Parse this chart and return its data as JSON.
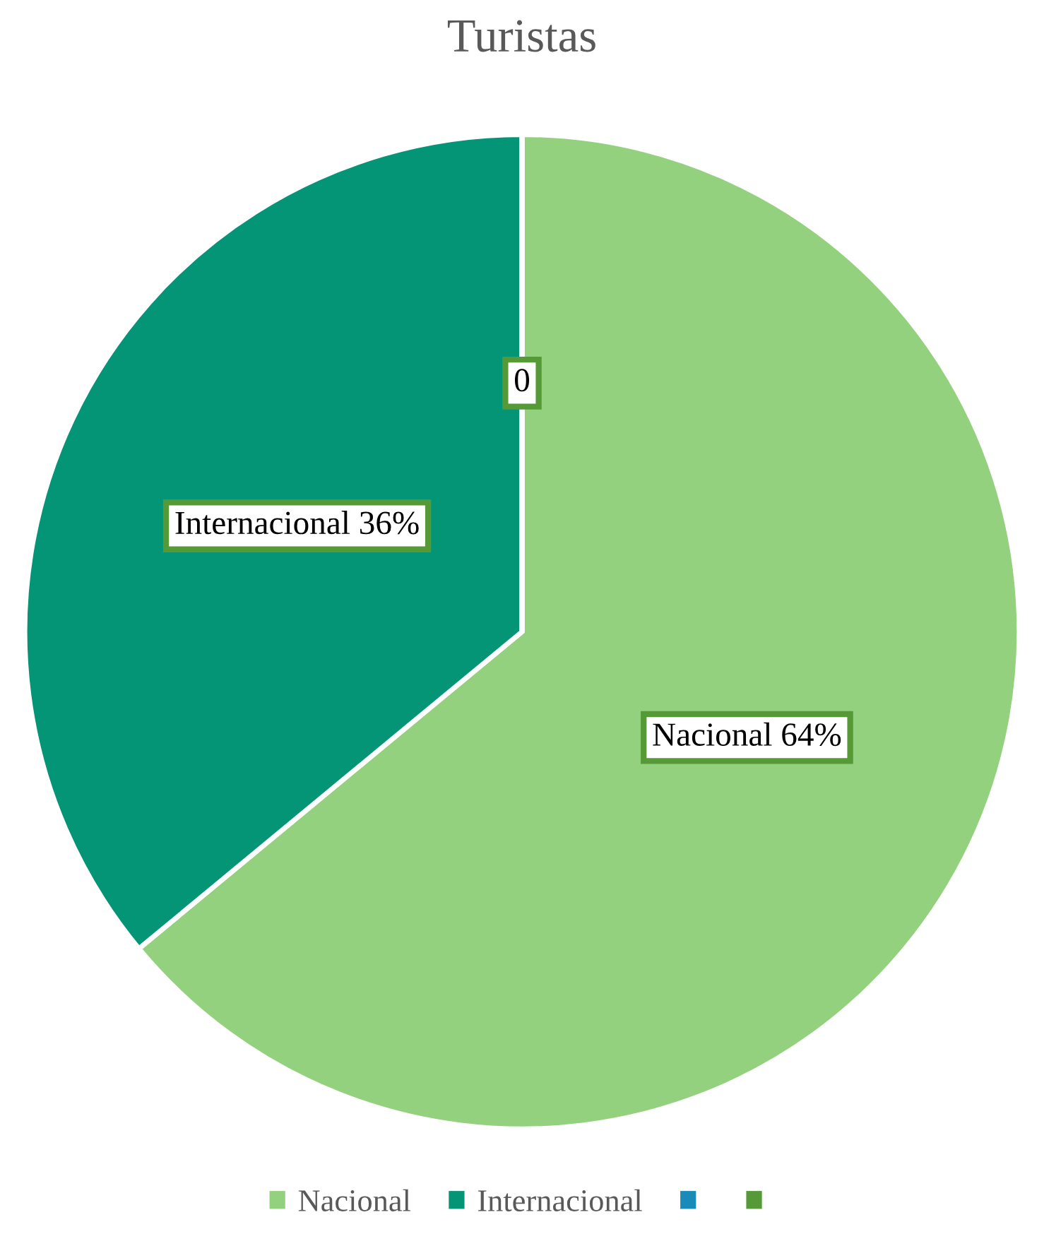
{
  "chart_data": {
    "type": "pie",
    "title": "Turistas",
    "categories": [
      "Nacional",
      "Internacional",
      null,
      null
    ],
    "values": [
      64,
      36,
      0,
      0
    ],
    "colors": [
      "#94d17e",
      "#039575",
      "#1a8ab8",
      "#559a37"
    ],
    "value_labels": [
      "Nacional 64%",
      "Internacional 36%",
      "0",
      null
    ],
    "legend": "bottom"
  }
}
